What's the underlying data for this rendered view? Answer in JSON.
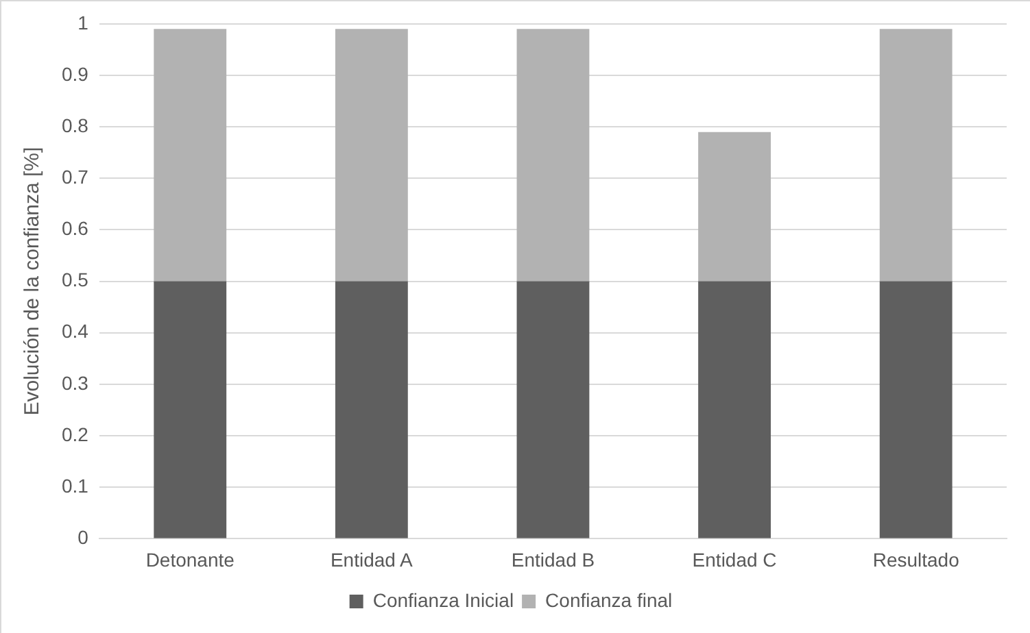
{
  "chart_data": {
    "type": "bar",
    "stacked": true,
    "ylabel": "Evolución de la confianza [%]",
    "categories": [
      "Detonante",
      "Entidad A",
      "Entidad B",
      "Entidad C",
      "Resultado"
    ],
    "series": [
      {
        "name": "Confianza Inicial",
        "color": "#5f5f5f",
        "values": [
          0.5,
          0.5,
          0.5,
          0.5,
          0.5
        ]
      },
      {
        "name": "Confianza final",
        "color": "#b2b2b2",
        "values": [
          0.49,
          0.49,
          0.49,
          0.29,
          0.49
        ]
      }
    ],
    "ylim": [
      0,
      1
    ],
    "yticks": [
      0,
      0.1,
      0.2,
      0.3,
      0.4,
      0.5,
      0.6,
      0.7,
      0.8,
      0.9,
      1
    ],
    "grid": "y",
    "legend": "bottom"
  }
}
